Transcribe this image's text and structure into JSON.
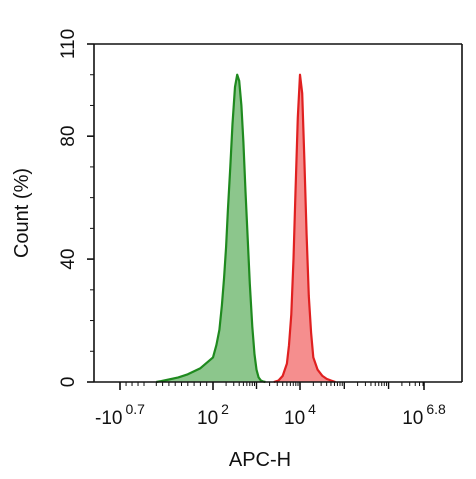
{
  "chart_data": {
    "type": "area",
    "title": "",
    "xlabel": "APC-H",
    "ylabel": "Count  (%)",
    "x_scale": "biexponential",
    "xlim": [
      -5.012,
      6309573
    ],
    "ylim": [
      0,
      110
    ],
    "grid": false,
    "y_ticks": [
      {
        "value": 0,
        "label": "0"
      },
      {
        "value": 40,
        "label": "40"
      },
      {
        "value": 80,
        "label": "80"
      },
      {
        "value": 110,
        "label": "110"
      }
    ],
    "x_ticks": [
      {
        "value": -5.012,
        "base": "-10",
        "exp": "0.7"
      },
      {
        "value": 100,
        "base": "10",
        "exp": "2"
      },
      {
        "value": 10000,
        "base": "10",
        "exp": "4"
      },
      {
        "value": 6309573,
        "base": "10",
        "exp": "6.8"
      }
    ],
    "series": [
      {
        "color": "#1f8a1f",
        "fill": "#8cc68c",
        "x": [
          10,
          18,
          30,
          45,
          60,
          80,
          100,
          120,
          140,
          160,
          180,
          200,
          220,
          250,
          280,
          320,
          360,
          400,
          450,
          500,
          560,
          630,
          700,
          800,
          900,
          1000,
          1120,
          1260,
          1400,
          1600
        ],
        "y": [
          0,
          0.3,
          0.8,
          1.5,
          2.5,
          4.5,
          8,
          12,
          17,
          25,
          34,
          44,
          56,
          70,
          84,
          96,
          100,
          98,
          90,
          78,
          62,
          46,
          32,
          18,
          9,
          4,
          1.5,
          0.5,
          0.2,
          0
        ]
      },
      {
        "color": "#e02020",
        "fill": "#f58e8e",
        "x": [
          2500,
          3200,
          4000,
          5000,
          5600,
          6300,
          7100,
          7900,
          8900,
          10000,
          11200,
          12600,
          14100,
          15800,
          17800,
          20000,
          25000,
          32000,
          40000,
          50000,
          63000
        ],
        "y": [
          0,
          0.5,
          2,
          6,
          12,
          22,
          40,
          62,
          86,
          100,
          94,
          72,
          48,
          28,
          16,
          8,
          4,
          2,
          1,
          0.5,
          0
        ]
      }
    ]
  }
}
